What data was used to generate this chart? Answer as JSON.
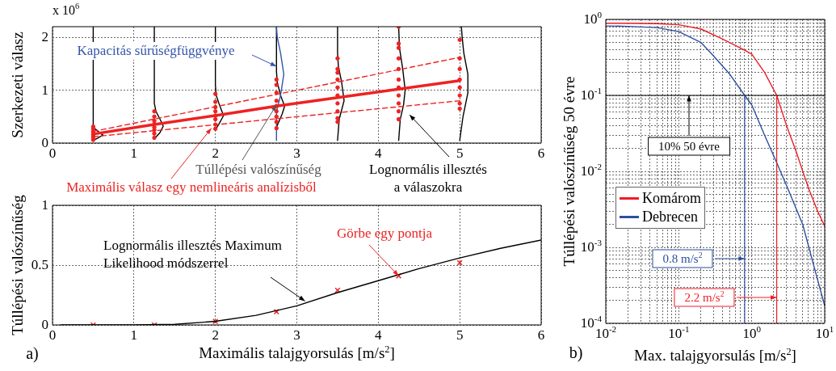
{
  "chart_data": [
    {
      "type": "scatter",
      "ylabel": "Szerkezeti válasz",
      "xlim": [
        0,
        6
      ],
      "xticks": [
        0,
        1,
        2,
        3,
        4,
        5,
        6
      ],
      "ylim": [
        0,
        2.2
      ],
      "yticks": [
        0,
        1,
        2
      ],
      "grid": true,
      "annotations": [
        "x 10$^{6}$",
        {
          "text": "Kapacitás sűrűségfüggvénye",
          "x": 2.75,
          "y": 1.45
        },
        {
          "text": "Túllépési valószínűség",
          "x": 2.75,
          "y": 0.72
        },
        {
          "text": "Maximális válasz egy nemlineáris analízisből",
          "x": 1.95,
          "y": 0.28
        },
        "Lognormális illesztés\na válaszokra"
      ],
      "series": [
        {
          "marker": "circle",
          "color": "#ee2222",
          "x": [
            0.5,
            0.5,
            0.5,
            0.5,
            0.5,
            0.5,
            0.5,
            0.5,
            1.25,
            1.25,
            1.25,
            1.25,
            1.25,
            1.25,
            1.25,
            1.25,
            2,
            2,
            2,
            2,
            2,
            2,
            2,
            2,
            2.75,
            2.75,
            2.75,
            2.75,
            2.75,
            2.75,
            2.75,
            2.75,
            2.75,
            3.5,
            3.5,
            3.5,
            3.5,
            3.5,
            3.5,
            3.5,
            3.5,
            3.5,
            3.5,
            4.25,
            4.25,
            4.25,
            4.25,
            4.25,
            4.25,
            4.25,
            4.25,
            4.25,
            4.25,
            4.25,
            5,
            5,
            5,
            5,
            5,
            5,
            5,
            5
          ],
          "values": [
            0.06,
            0.1,
            0.13,
            0.16,
            0.19,
            0.22,
            0.27,
            0.31,
            0.1,
            0.18,
            0.25,
            0.3,
            0.36,
            0.42,
            0.5,
            0.6,
            0.27,
            0.35,
            0.45,
            0.52,
            0.6,
            0.68,
            0.78,
            0.93,
            0.28,
            0.4,
            0.5,
            0.6,
            0.7,
            0.8,
            0.95,
            1.1,
            1.2,
            0.4,
            0.47,
            0.6,
            0.75,
            0.9,
            1.05,
            1.2,
            1.33,
            1.4,
            1.6,
            0.45,
            0.6,
            0.75,
            0.9,
            1.05,
            1.2,
            1.4,
            1.6,
            1.8,
            1.88,
            2.2,
            0.65,
            0.75,
            0.9,
            1.05,
            1.2,
            1.4,
            1.6,
            1.95
          ]
        },
        {
          "type": "line",
          "marker": "none",
          "color": "#ee2222",
          "x": [
            0.5,
            1.25,
            2,
            2.75,
            3.5,
            4.25,
            5
          ],
          "values": [
            0.17,
            0.35,
            0.52,
            0.7,
            0.86,
            1.02,
            1.18
          ]
        },
        {
          "type": "line",
          "marker": "none",
          "line_style": "dashed",
          "color": "#ee2222",
          "x": [
            0.5,
            5
          ],
          "values": [
            0.22,
            1.62
          ]
        },
        {
          "type": "line",
          "marker": "none",
          "line_style": "dashed",
          "color": "#ee2222",
          "x": [
            0.5,
            5
          ],
          "values": [
            0.12,
            0.8
          ]
        },
        {
          "type": "line",
          "marker": "none",
          "color": "#3355aa",
          "x": [
            2.75,
            2.75,
            2.8,
            2.84,
            2.8,
            2.76,
            2.75
          ],
          "values": [
            0.05,
            0.6,
            0.9,
            1.3,
            1.7,
            2.0,
            2.2
          ]
        },
        {
          "type": "line",
          "marker": "none",
          "color": "#000000",
          "x": [
            0.5,
            0.55,
            0.62,
            0.56,
            0.5,
            0.5
          ],
          "values": [
            0.05,
            0.09,
            0.15,
            0.22,
            0.3,
            2.2
          ]
        },
        {
          "type": "line",
          "marker": "none",
          "color": "#000000",
          "x": [
            1.25,
            1.32,
            1.36,
            1.32,
            1.27,
            1.25,
            1.25
          ],
          "values": [
            0.08,
            0.2,
            0.32,
            0.45,
            0.6,
            0.75,
            2.2
          ]
        },
        {
          "type": "line",
          "marker": "none",
          "color": "#000000",
          "x": [
            2,
            2.04,
            2.1,
            2.05,
            2.01,
            2,
            2
          ],
          "values": [
            0.25,
            0.35,
            0.52,
            0.72,
            0.9,
            1.1,
            2.2
          ]
        },
        {
          "type": "line",
          "marker": "none",
          "color": "#000000",
          "x": [
            2.75,
            2.82,
            2.85,
            2.8,
            2.76,
            2.75,
            2.75
          ],
          "values": [
            0.3,
            0.55,
            0.7,
            0.9,
            1.15,
            1.35,
            2.2
          ]
        },
        {
          "type": "line",
          "marker": "none",
          "color": "#000000",
          "x": [
            3.5,
            3.52,
            3.58,
            3.55,
            3.51,
            3.5,
            3.5
          ],
          "values": [
            0.05,
            0.45,
            0.8,
            1.15,
            1.45,
            1.7,
            2.2
          ]
        },
        {
          "type": "line",
          "marker": "none",
          "color": "#000000",
          "x": [
            4.25,
            4.27,
            4.31,
            4.33,
            4.3,
            4.26,
            4.25
          ],
          "values": [
            0.05,
            0.45,
            0.72,
            1.0,
            1.4,
            1.8,
            2.2
          ]
        },
        {
          "type": "line",
          "marker": "none",
          "color": "#000000",
          "x": [
            5,
            5.04,
            5.1,
            5.1,
            5.05,
            5.03,
            5.02
          ],
          "values": [
            0.05,
            0.5,
            0.95,
            1.3,
            1.7,
            2.0,
            2.2
          ]
        }
      ]
    },
    {
      "type": "line",
      "xlabel": "Maximális talajgyorsulás [m/s$^{2}$]",
      "ylabel": "Túllépési valószínűség",
      "xlim": [
        0,
        6
      ],
      "xticks": [
        0,
        1,
        2,
        3,
        4,
        5,
        6
      ],
      "ylim": [
        0,
        1
      ],
      "yticks": [
        0,
        0.5,
        1
      ],
      "grid": true,
      "annotations": [
        {
          "text": "Lognormális illesztés Maximum\nLikelihood módszerrel",
          "x": 3.1,
          "y": 0.2
        },
        {
          "text": "Görbe egy pontja",
          "x": 4.25,
          "y": 0.41
        },
        "a)"
      ],
      "series": [
        {
          "marker": "none",
          "color": "#000000",
          "x": [
            0.1,
            1,
            1.5,
            2,
            2.5,
            3,
            3.5,
            4,
            4.5,
            5,
            5.5,
            6
          ],
          "values": [
            0,
            0,
            0.005,
            0.03,
            0.08,
            0.16,
            0.27,
            0.37,
            0.47,
            0.56,
            0.64,
            0.71
          ]
        },
        {
          "type": "scatter",
          "marker": "cross",
          "color": "#ee2222",
          "x": [
            0.5,
            1.25,
            2,
            2.75,
            3.5,
            4.25,
            5
          ],
          "values": [
            0,
            0,
            0.03,
            0.11,
            0.29,
            0.41,
            0.52
          ]
        }
      ]
    },
    {
      "type": "line",
      "xlabel": "Max. talajgyorsulás [m/s$^{2}$]",
      "ylabel": "Túllépési valószínűség 50 évre",
      "log": "xy",
      "grid": true,
      "legend": "left",
      "annotations": [
        "b)"
      ],
      "xlim": [
        0.01,
        10
      ],
      "ylim": [
        0.0001,
        1
      ],
      "xticks": [
        {
          "value": 0.01,
          "label": "10$^{-2}$"
        },
        {
          "value": 0.02,
          "label": null
        },
        {
          "value": 0.03,
          "label": null
        },
        {
          "value": 0.04,
          "label": null
        },
        {
          "value": 0.05,
          "label": null
        },
        {
          "value": 0.06,
          "label": null
        },
        {
          "value": 0.07,
          "label": null
        },
        {
          "value": 0.08,
          "label": null
        },
        {
          "value": 0.09,
          "label": null
        },
        {
          "value": 0.1,
          "label": "10$^{-1}$"
        },
        {
          "value": 0.2,
          "label": null
        },
        {
          "value": 0.3,
          "label": null
        },
        {
          "value": 0.4,
          "label": null
        },
        {
          "value": 0.5,
          "label": null
        },
        {
          "value": 0.6,
          "label": null
        },
        {
          "value": 0.7,
          "label": null
        },
        {
          "value": 0.8,
          "label": null
        },
        {
          "value": 0.9,
          "label": null
        },
        {
          "value": 1,
          "label": "10$^{0}$"
        },
        {
          "value": 2,
          "label": null
        },
        {
          "value": 3,
          "label": null
        },
        {
          "value": 4,
          "label": null
        },
        {
          "value": 5,
          "label": null
        },
        {
          "value": 6,
          "label": null
        },
        {
          "value": 7,
          "label": null
        },
        {
          "value": 8,
          "label": null
        },
        {
          "value": 9,
          "label": null
        },
        {
          "value": 10,
          "label": "10$^{1}$"
        }
      ],
      "yticks": [
        {
          "value": 0.0001,
          "label": "10$^{-4}$"
        },
        {
          "value": 0.0002,
          "label": null
        },
        {
          "value": 0.0003,
          "label": null
        },
        {
          "value": 0.0004,
          "label": null
        },
        {
          "value": 0.0005,
          "label": null
        },
        {
          "value": 0.0006,
          "label": null
        },
        {
          "value": 0.0007,
          "label": null
        },
        {
          "value": 0.0008,
          "label": null
        },
        {
          "value": 0.0009,
          "label": null
        },
        {
          "value": 0.001,
          "label": "10$^{-3}$"
        },
        {
          "value": 0.002,
          "label": null
        },
        {
          "value": 0.003,
          "label": null
        },
        {
          "value": 0.004,
          "label": null
        },
        {
          "value": 0.005,
          "label": null
        },
        {
          "value": 0.006,
          "label": null
        },
        {
          "value": 0.007,
          "label": null
        },
        {
          "value": 0.008,
          "label": null
        },
        {
          "value": 0.009,
          "label": null
        },
        {
          "value": 0.01,
          "label": "10$^{-2}$"
        },
        {
          "value": 0.02,
          "label": null
        },
        {
          "value": 0.03,
          "label": null
        },
        {
          "value": 0.04,
          "label": null
        },
        {
          "value": 0.05,
          "label": null
        },
        {
          "value": 0.06,
          "label": null
        },
        {
          "value": 0.07,
          "label": null
        },
        {
          "value": 0.08,
          "label": null
        },
        {
          "value": 0.09,
          "label": null
        },
        {
          "value": 0.1,
          "label": "10$^{-1}$"
        },
        {
          "value": 0.2,
          "label": null
        },
        {
          "value": 0.3,
          "label": null
        },
        {
          "value": 0.4,
          "label": null
        },
        {
          "value": 0.5,
          "label": null
        },
        {
          "value": 0.6,
          "label": null
        },
        {
          "value": 0.7,
          "label": null
        },
        {
          "value": 0.8,
          "label": null
        },
        {
          "value": 0.9,
          "label": null
        },
        {
          "value": 1,
          "label": "10$^{0}$"
        }
      ],
      "ref_lines": [
        {
          "axis": "y",
          "value": 0.1,
          "label": "10% 50 évre",
          "color": "#000000"
        },
        {
          "axis": "x",
          "value": 0.8,
          "label": "0.8 m/s$^{2}$",
          "color": "#2b4fa0"
        },
        {
          "axis": "x",
          "value": 2.2,
          "label": "2.2 m/s$^{2}$",
          "color": "#ee1c25"
        }
      ],
      "series": [
        {
          "name": "Komárom",
          "marker": "none",
          "color": "#ee1c25",
          "x": [
            0.01,
            0.02,
            0.05,
            0.1,
            0.2,
            0.4,
            0.7,
            1,
            1.5,
            2.2,
            3,
            4,
            6,
            8,
            10
          ],
          "values": [
            0.89,
            0.89,
            0.88,
            0.85,
            0.75,
            0.55,
            0.42,
            0.35,
            0.2,
            0.1,
            0.04,
            0.019,
            0.006,
            0.003,
            0.0019
          ]
        },
        {
          "name": "Debrecen",
          "marker": "none",
          "color": "#2b4fa0",
          "x": [
            0.01,
            0.02,
            0.05,
            0.1,
            0.2,
            0.3,
            0.5,
            0.8,
            1,
            1.5,
            2,
            3,
            5,
            7,
            10
          ],
          "values": [
            0.82,
            0.81,
            0.78,
            0.69,
            0.5,
            0.33,
            0.19,
            0.1,
            0.075,
            0.03,
            0.016,
            0.0065,
            0.002,
            0.0006,
            0.00017
          ]
        }
      ]
    }
  ]
}
